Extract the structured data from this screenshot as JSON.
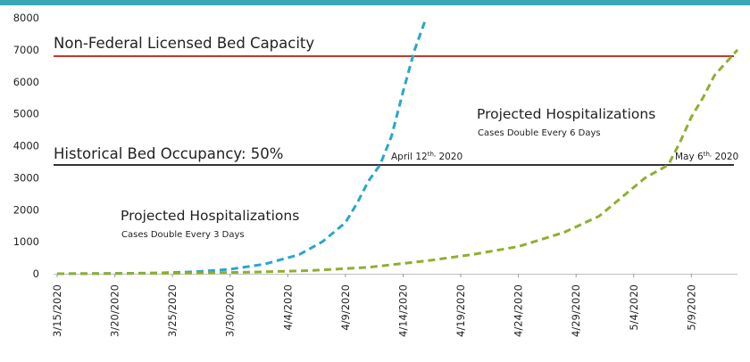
{
  "chart_data": {
    "type": "line",
    "y_ticks": [
      0,
      1000,
      2000,
      3000,
      4000,
      5000,
      6000,
      7000,
      8000
    ],
    "ylim": [
      0,
      8000
    ],
    "x_dates": [
      "2020-03-15",
      "2020-05-13"
    ],
    "x_tick_labels": [
      "3/15/2020",
      "3/20/2020",
      "3/25/2020",
      "3/30/2020",
      "4/4/2020",
      "4/9/2020",
      "4/14/2020",
      "4/19/2020",
      "4/24/2020",
      "4/29/2020",
      "5/4/2020",
      "5/9/2020"
    ],
    "grid": false,
    "reference_lines": [
      {
        "label": "Non-Federal Licensed Bed Capacity",
        "value": 6800,
        "color": "#c0392b"
      },
      {
        "label": "Historical Bed Occupancy: 50%",
        "value": 3400,
        "color": "#333333"
      }
    ],
    "series": [
      {
        "label": "Projected Hospitalizations",
        "sublabel": "Cases Double Every 3 Days",
        "color": "#2aa6c9",
        "points": [
          {
            "x": "2020-03-15",
            "y": 0
          },
          {
            "x": "2020-03-18",
            "y": 5
          },
          {
            "x": "2020-03-21",
            "y": 12
          },
          {
            "x": "2020-03-24",
            "y": 25
          },
          {
            "x": "2020-03-27",
            "y": 60
          },
          {
            "x": "2020-03-30",
            "y": 140
          },
          {
            "x": "2020-04-02",
            "y": 300
          },
          {
            "x": "2020-04-05",
            "y": 600
          },
          {
            "x": "2020-04-07",
            "y": 1000
          },
          {
            "x": "2020-04-09",
            "y": 1600
          },
          {
            "x": "2020-04-10",
            "y": 2200
          },
          {
            "x": "2020-04-11",
            "y": 2900
          },
          {
            "x": "2020-04-12",
            "y": 3400
          },
          {
            "x": "2020-04-13",
            "y": 4300
          },
          {
            "x": "2020-04-14",
            "y": 5700
          },
          {
            "x": "2020-04-15",
            "y": 7000
          },
          {
            "x": "2020-04-16",
            "y": 8000
          }
        ]
      },
      {
        "label": "Projected Hospitalizations",
        "sublabel": "Cases Double Every 6 Days",
        "color": "#8faf2f",
        "points": [
          {
            "x": "2020-03-15",
            "y": 0
          },
          {
            "x": "2020-03-25",
            "y": 15
          },
          {
            "x": "2020-04-01",
            "y": 50
          },
          {
            "x": "2020-04-06",
            "y": 100
          },
          {
            "x": "2020-04-11",
            "y": 200
          },
          {
            "x": "2020-04-16",
            "y": 400
          },
          {
            "x": "2020-04-20",
            "y": 600
          },
          {
            "x": "2020-04-24",
            "y": 850
          },
          {
            "x": "2020-04-28",
            "y": 1300
          },
          {
            "x": "2020-05-01",
            "y": 1800
          },
          {
            "x": "2020-05-03",
            "y": 2400
          },
          {
            "x": "2020-05-05",
            "y": 3000
          },
          {
            "x": "2020-05-07",
            "y": 3400
          },
          {
            "x": "2020-05-08",
            "y": 4100
          },
          {
            "x": "2020-05-09",
            "y": 4900
          },
          {
            "x": "2020-05-10",
            "y": 5500
          },
          {
            "x": "2020-05-11",
            "y": 6200
          },
          {
            "x": "2020-05-13",
            "y": 7000
          }
        ]
      }
    ],
    "annotations": [
      {
        "name": "april-12-annotation",
        "prefix": "April 12",
        "sup": "th,",
        "suffix": " 2020"
      },
      {
        "name": "may-6-annotation",
        "prefix": "May 6",
        "sup": "th,",
        "suffix": " 2020"
      }
    ]
  }
}
